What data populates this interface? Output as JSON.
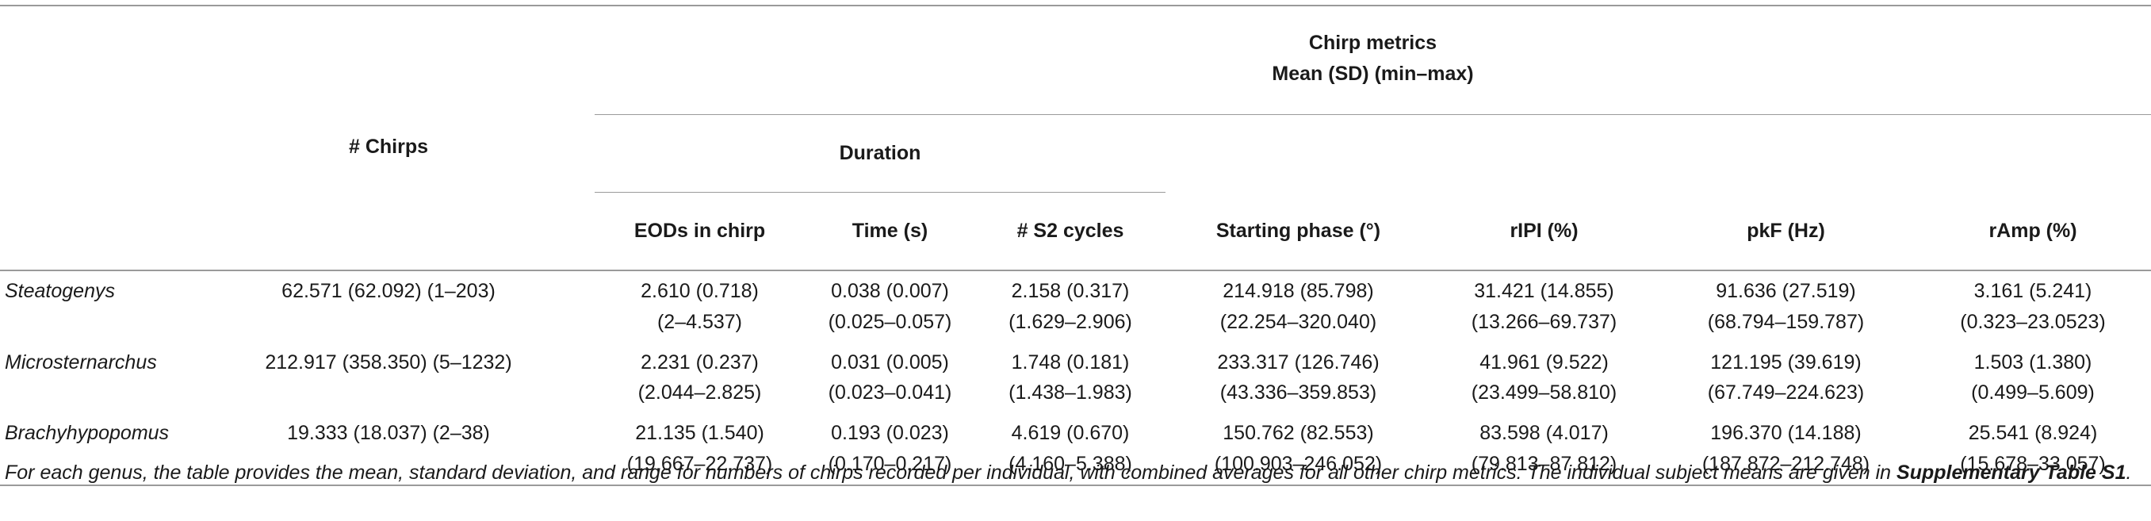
{
  "header": {
    "group_title_line1": "Chirp metrics",
    "group_title_line2": "Mean (SD) (min–max)",
    "chirps": "# Chirps",
    "duration": "Duration",
    "columns": [
      "EODs in chirp",
      "Time (s)",
      "# S2 cycles",
      "Starting phase (°)",
      "rIPI (%)",
      "pkF (Hz)",
      "rAmp (%)"
    ]
  },
  "rows": [
    {
      "genus": "Steatogenys",
      "chirps": "62.571 (62.092) (1–203)",
      "cells": [
        [
          "2.610 (0.718)",
          "(2–4.537)"
        ],
        [
          "0.038 (0.007)",
          "(0.025–0.057)"
        ],
        [
          "2.158 (0.317)",
          "(1.629–2.906)"
        ],
        [
          "214.918 (85.798)",
          "(22.254–320.040)"
        ],
        [
          "31.421 (14.855)",
          "(13.266–69.737)"
        ],
        [
          "91.636 (27.519)",
          "(68.794–159.787)"
        ],
        [
          "3.161 (5.241)",
          "(0.323–23.0523)"
        ]
      ]
    },
    {
      "genus": "Microsternarchus",
      "chirps": "212.917 (358.350) (5–1232)",
      "cells": [
        [
          "2.231 (0.237)",
          "(2.044–2.825)"
        ],
        [
          "0.031 (0.005)",
          "(0.023–0.041)"
        ],
        [
          "1.748 (0.181)",
          "(1.438–1.983)"
        ],
        [
          "233.317 (126.746)",
          "(43.336–359.853)"
        ],
        [
          "41.961 (9.522)",
          "(23.499–58.810)"
        ],
        [
          "121.195 (39.619)",
          "(67.749–224.623)"
        ],
        [
          "1.503 (1.380)",
          "(0.499–5.609)"
        ]
      ]
    },
    {
      "genus": "Brachyhypopomus",
      "chirps": "19.333 (18.037) (2–38)",
      "cells": [
        [
          "21.135 (1.540)",
          "(19.667–22.737)"
        ],
        [
          "0.193 (0.023)",
          "(0.170–0.217)"
        ],
        [
          "4.619 (0.670)",
          "(4.160–5.388)"
        ],
        [
          "150.762 (82.553)",
          "(100.903–246.052)"
        ],
        [
          "83.598 (4.017)",
          "(79.813–87.812)"
        ],
        [
          "196.370 (14.188)",
          "(187.872–212.748)"
        ],
        [
          "25.541 (8.924)",
          "(15.678–33.057)"
        ]
      ]
    }
  ],
  "caption": {
    "text": "For each genus, the table provides the mean, standard deviation, and range for numbers of chirps recorded per individual, with combined averages for all other chirp metrics. The individual subject means are given in ",
    "ref": "Supplementary Table S1",
    "end": "."
  }
}
